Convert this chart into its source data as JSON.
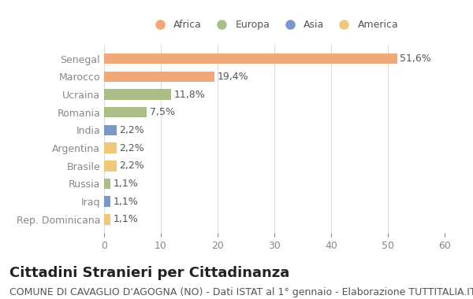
{
  "countries": [
    "Senegal",
    "Marocco",
    "Ucraina",
    "Romania",
    "India",
    "Argentina",
    "Brasile",
    "Russia",
    "Iraq",
    "Rep. Dominicana"
  ],
  "values": [
    51.6,
    19.4,
    11.8,
    7.5,
    2.2,
    2.2,
    2.2,
    1.1,
    1.1,
    1.1
  ],
  "labels": [
    "51,6%",
    "19,4%",
    "11,8%",
    "7,5%",
    "2,2%",
    "2,2%",
    "2,2%",
    "1,1%",
    "1,1%",
    "1,1%"
  ],
  "continents": [
    "Africa",
    "Africa",
    "Europa",
    "Europa",
    "Asia",
    "America",
    "America",
    "Europa",
    "Asia",
    "America"
  ],
  "colors": {
    "Africa": "#F0A878",
    "Europa": "#ABBE88",
    "Asia": "#7898C8",
    "America": "#F0C878"
  },
  "legend_order": [
    "Africa",
    "Europa",
    "Asia",
    "America"
  ],
  "xlim": [
    0,
    60
  ],
  "xticks": [
    0,
    10,
    20,
    30,
    40,
    50,
    60
  ],
  "title": "Cittadini Stranieri per Cittadinanza",
  "subtitle": "COMUNE DI CAVAGLIO D'AGOGNA (NO) - Dati ISTAT al 1° gennaio - Elaborazione TUTTITALIA.IT",
  "title_fontsize": 13,
  "subtitle_fontsize": 9,
  "label_fontsize": 9,
  "tick_fontsize": 9,
  "bg_color": "#ffffff",
  "bar_height": 0.6
}
